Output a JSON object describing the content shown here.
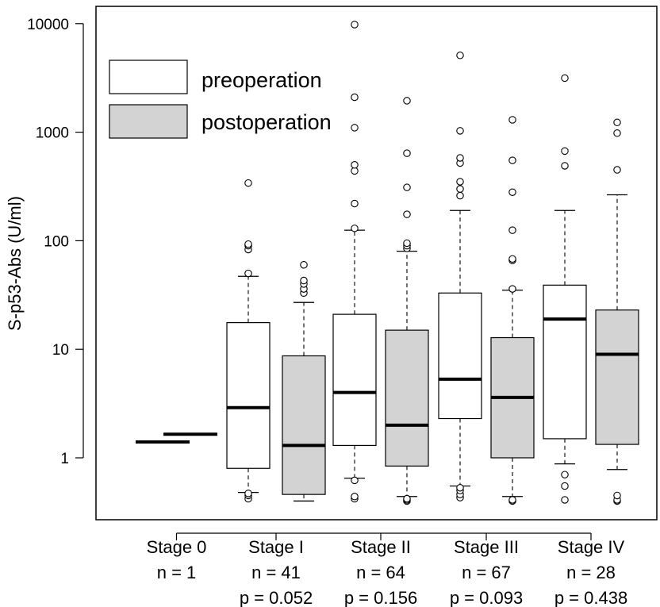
{
  "chart_data": {
    "type": "boxplot",
    "ylabel": "S-p53-Abs (U/ml)",
    "y_scale": "log10",
    "yticks": [
      1,
      10,
      100,
      1000,
      10000
    ],
    "ytick_labels": [
      "1",
      "10",
      "100",
      "1000",
      "10000"
    ],
    "ylim": [
      0.3,
      15000
    ],
    "legend": {
      "position": "top-left",
      "entries": [
        {
          "label": "preoperation",
          "fill": "#ffffff"
        },
        {
          "label": "postoperation",
          "fill": "#d3d3d3"
        }
      ]
    },
    "groups": [
      {
        "label": "Stage 0",
        "n": "n = 1",
        "p": ""
      },
      {
        "label": "Stage I",
        "n": "n = 41",
        "p": "p = 0.052"
      },
      {
        "label": "Stage II",
        "n": "n = 64",
        "p": "p = 0.156"
      },
      {
        "label": "Stage III",
        "n": "n = 67",
        "p": "p = 0.093"
      },
      {
        "label": "Stage IV",
        "n": "n = 28",
        "p": "p = 0.438"
      }
    ],
    "boxes": [
      {
        "group": "Stage 0",
        "series": "preoperation",
        "whisker_low": 1.4,
        "q1": 1.4,
        "median": 1.4,
        "q3": 1.4,
        "whisker_high": 1.4,
        "outliers": []
      },
      {
        "group": "Stage 0",
        "series": "postoperation",
        "whisker_low": 1.65,
        "q1": 1.65,
        "median": 1.65,
        "q3": 1.65,
        "whisker_high": 1.65,
        "outliers": []
      },
      {
        "group": "Stage I",
        "series": "preoperation",
        "whisker_low": 0.48,
        "q1": 0.8,
        "median": 2.9,
        "q3": 17.6,
        "whisker_high": 47,
        "outliers": [
          0.42,
          0.45,
          0.47,
          50,
          83,
          90,
          93,
          340
        ]
      },
      {
        "group": "Stage I",
        "series": "postoperation",
        "whisker_low": 0.4,
        "q1": 0.46,
        "median": 1.3,
        "q3": 8.7,
        "whisker_high": 27,
        "outliers": [
          33,
          36,
          40,
          43,
          60
        ]
      },
      {
        "group": "Stage II",
        "series": "preoperation",
        "whisker_low": 0.65,
        "q1": 1.3,
        "median": 4.0,
        "q3": 21,
        "whisker_high": 125,
        "outliers": [
          0.42,
          0.44,
          0.62,
          130,
          220,
          440,
          500,
          1100,
          2100,
          9800
        ]
      },
      {
        "group": "Stage II",
        "series": "postoperation",
        "whisker_low": 0.44,
        "q1": 0.84,
        "median": 2.0,
        "q3": 15,
        "whisker_high": 80,
        "outliers": [
          0.4,
          0.41,
          0.42,
          85,
          90,
          95,
          175,
          310,
          640,
          1950
        ]
      },
      {
        "group": "Stage III",
        "series": "preoperation",
        "whisker_low": 0.55,
        "q1": 2.3,
        "median": 5.3,
        "q3": 33,
        "whisker_high": 190,
        "outliers": [
          0.43,
          0.46,
          0.5,
          0.53,
          260,
          300,
          350,
          520,
          580,
          1030,
          5100
        ]
      },
      {
        "group": "Stage III",
        "series": "postoperation",
        "whisker_low": 0.44,
        "q1": 1.0,
        "median": 3.6,
        "q3": 12.8,
        "whisker_high": 35,
        "outliers": [
          0.4,
          0.41,
          36,
          66,
          68,
          125,
          280,
          550,
          1300
        ]
      },
      {
        "group": "Stage IV",
        "series": "preoperation",
        "whisker_low": 0.88,
        "q1": 1.5,
        "median": 19,
        "q3": 39,
        "whisker_high": 190,
        "outliers": [
          0.41,
          0.55,
          0.7,
          490,
          670,
          3150
        ]
      },
      {
        "group": "Stage IV",
        "series": "postoperation",
        "whisker_low": 0.78,
        "q1": 1.33,
        "median": 9.0,
        "q3": 23,
        "whisker_high": 265,
        "outliers": [
          0.4,
          0.41,
          0.45,
          450,
          980,
          1230
        ]
      }
    ]
  }
}
